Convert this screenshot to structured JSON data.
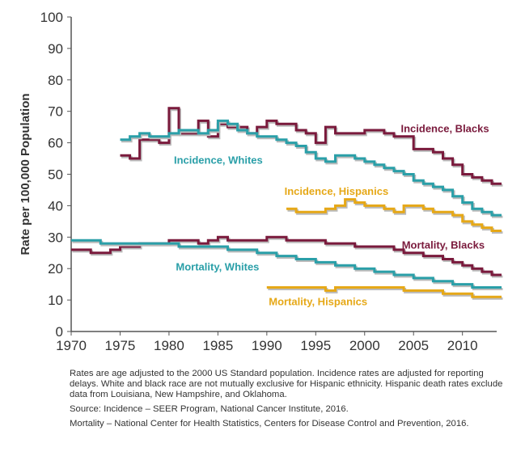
{
  "chart_data": {
    "type": "line",
    "title": "",
    "xlabel": "",
    "ylabel": "Rate per 100,000 Population",
    "xlim": [
      1970,
      2013.5
    ],
    "ylim": [
      0,
      100
    ],
    "x_ticks": [
      1970,
      1975,
      1980,
      1985,
      1990,
      1995,
      2000,
      2005,
      2010
    ],
    "y_ticks": [
      0,
      10,
      20,
      30,
      40,
      50,
      60,
      70,
      80,
      90,
      100
    ],
    "grid": false,
    "legend": "none (series labeled directly on the chart)",
    "series": [
      {
        "name": "Incidence, Blacks",
        "color": "#7a1a3c",
        "x": [
          1975,
          1976,
          1977,
          1978,
          1979,
          1980,
          1981,
          1982,
          1983,
          1984,
          1985,
          1986,
          1987,
          1988,
          1989,
          1990,
          1991,
          1992,
          1993,
          1994,
          1995,
          1996,
          1997,
          1998,
          1999,
          2000,
          2001,
          2002,
          2003,
          2004,
          2005,
          2006,
          2007,
          2008,
          2009,
          2010,
          2011,
          2012,
          2013
        ],
        "values": [
          56,
          55,
          61,
          61,
          60,
          71,
          63,
          63,
          67,
          62,
          66,
          65,
          65,
          63,
          65,
          67,
          66,
          66,
          64,
          63,
          60,
          65,
          63,
          63,
          63,
          64,
          64,
          63,
          62,
          62,
          58,
          58,
          57,
          55,
          53,
          50,
          49,
          48,
          47
        ]
      },
      {
        "name": "Incidence, Whites",
        "color": "#2a9fa8",
        "x": [
          1975,
          1976,
          1977,
          1978,
          1979,
          1980,
          1981,
          1982,
          1983,
          1984,
          1985,
          1986,
          1987,
          1988,
          1989,
          1990,
          1991,
          1992,
          1993,
          1994,
          1995,
          1996,
          1997,
          1998,
          1999,
          2000,
          2001,
          2002,
          2003,
          2004,
          2005,
          2006,
          2007,
          2008,
          2009,
          2010,
          2011,
          2012,
          2013
        ],
        "values": [
          61,
          62,
          63,
          62,
          62,
          63,
          64,
          64,
          63,
          64,
          67,
          66,
          64,
          63,
          62,
          62,
          61,
          60,
          59,
          57,
          55,
          54,
          56,
          56,
          55,
          54,
          53,
          52,
          51,
          50,
          48,
          47,
          46,
          45,
          43,
          41,
          39,
          38,
          37
        ]
      },
      {
        "name": "Incidence, Hispanics",
        "color": "#e6a817",
        "x": [
          1992,
          1993,
          1994,
          1995,
          1996,
          1997,
          1998,
          1999,
          2000,
          2001,
          2002,
          2003,
          2004,
          2005,
          2006,
          2007,
          2008,
          2009,
          2010,
          2011,
          2012,
          2013
        ],
        "values": [
          39,
          38,
          38,
          38,
          39,
          40,
          42,
          41,
          40,
          40,
          39,
          38,
          40,
          40,
          39,
          38,
          38,
          37,
          35,
          34,
          33,
          32
        ]
      },
      {
        "name": "Mortality, Blacks",
        "color": "#7a1a3c",
        "x": [
          1970,
          1971,
          1972,
          1973,
          1974,
          1975,
          1976,
          1977,
          1978,
          1979,
          1980,
          1981,
          1982,
          1983,
          1984,
          1985,
          1986,
          1987,
          1988,
          1989,
          1990,
          1991,
          1992,
          1993,
          1994,
          1995,
          1996,
          1997,
          1998,
          1999,
          2000,
          2001,
          2002,
          2003,
          2004,
          2005,
          2006,
          2007,
          2008,
          2009,
          2010,
          2011,
          2012,
          2013
        ],
        "values": [
          26,
          26,
          25,
          25,
          26,
          27,
          27,
          28,
          28,
          28,
          29,
          29,
          29,
          28,
          29,
          30,
          29,
          29,
          29,
          29,
          30,
          30,
          29,
          29,
          29,
          29,
          28,
          28,
          28,
          27,
          27,
          27,
          27,
          26,
          25,
          25,
          24,
          24,
          23,
          22,
          21,
          20,
          19,
          18
        ]
      },
      {
        "name": "Mortality, Whites",
        "color": "#2a9fa8",
        "x": [
          1970,
          1971,
          1972,
          1973,
          1974,
          1975,
          1976,
          1977,
          1978,
          1979,
          1980,
          1981,
          1982,
          1983,
          1984,
          1985,
          1986,
          1987,
          1988,
          1989,
          1990,
          1991,
          1992,
          1993,
          1994,
          1995,
          1996,
          1997,
          1998,
          1999,
          2000,
          2001,
          2002,
          2003,
          2004,
          2005,
          2006,
          2007,
          2008,
          2009,
          2010,
          2011,
          2012,
          2013
        ],
        "values": [
          29,
          29,
          29,
          28,
          28,
          28,
          28,
          28,
          28,
          28,
          28,
          27,
          27,
          27,
          27,
          27,
          26,
          26,
          26,
          25,
          25,
          24,
          24,
          23,
          23,
          22,
          22,
          21,
          21,
          20,
          20,
          19,
          19,
          18,
          18,
          17,
          17,
          16,
          16,
          15,
          15,
          14,
          14,
          14
        ]
      },
      {
        "name": "Mortality, Hispanics",
        "color": "#e6a817",
        "x": [
          1990,
          1991,
          1992,
          1993,
          1994,
          1995,
          1996,
          1997,
          1998,
          1999,
          2000,
          2001,
          2002,
          2003,
          2004,
          2005,
          2006,
          2007,
          2008,
          2009,
          2010,
          2011,
          2012,
          2013
        ],
        "values": [
          14,
          14,
          14,
          14,
          14,
          14,
          13,
          14,
          14,
          14,
          14,
          14,
          14,
          14,
          13,
          13,
          13,
          13,
          12,
          12,
          12,
          11,
          11,
          11
        ]
      }
    ]
  },
  "notes": {
    "p1": "Rates are age adjusted to the 2000 US Standard population. Incidence rates are adjusted for reporting delays. White and black race are not mutually exclusive for Hispanic ethnicity. Hispanic death rates exclude data from Louisiana, New Hampshire, and Oklahoma.",
    "p2": "Source: Incidence – SEER Program, National Cancer Institute, 2016.",
    "p3": "Mortality – National Center for Health Statistics, Centers for Disease Control and Prevention, 2016."
  }
}
